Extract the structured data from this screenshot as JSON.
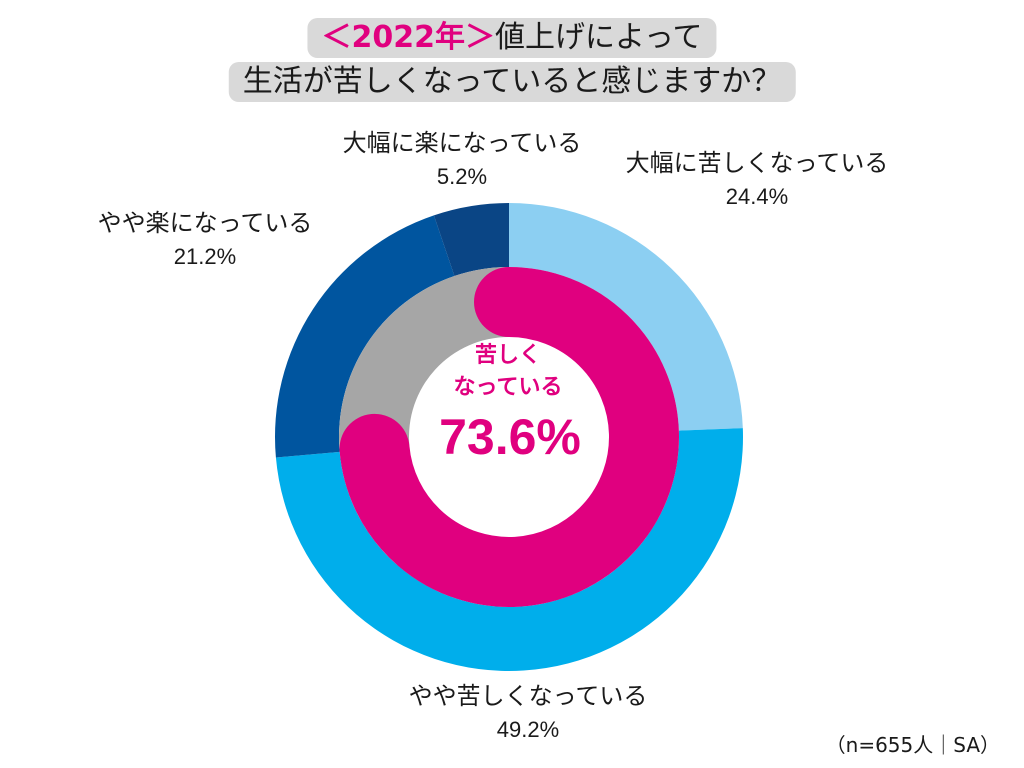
{
  "title": {
    "year_tag": "＜2022年＞",
    "line1_rest": "値上げによって",
    "line2": "生活が苦しくなっていると感じますか？"
  },
  "center": {
    "label_line1": "苦しく",
    "label_line2": "なっている",
    "value": "73.6%"
  },
  "note": "（n=655人｜SA）",
  "chart_data": {
    "type": "pie",
    "subtype": "double-donut",
    "outer": {
      "categories": [
        "大幅に苦しくなっている",
        "やや苦しくなっている",
        "やや楽になっている",
        "大幅に楽になっている"
      ],
      "values": [
        24.4,
        49.2,
        21.2,
        5.2
      ],
      "labels": [
        "24.4%",
        "49.2%",
        "21.2%",
        "5.2%"
      ],
      "colors": [
        "#8ccff2",
        "#00aeeb",
        "#00559f",
        "#0a4585"
      ]
    },
    "inner": {
      "categories": [
        "苦しくなっている",
        "楽になっている"
      ],
      "values": [
        73.6,
        26.4
      ],
      "colors": [
        "#e0007f",
        "#a6a6a6"
      ]
    },
    "legend": "none"
  }
}
